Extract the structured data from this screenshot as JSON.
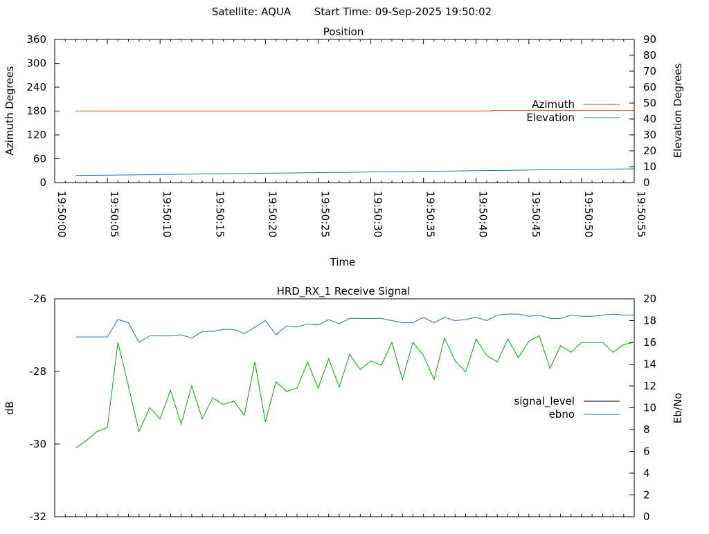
{
  "header": {
    "satellite": "Satellite: AQUA",
    "start_time": "Start Time: 09-Sep-2025 19:50:02"
  },
  "chart_data": [
    {
      "type": "line",
      "title": "Position",
      "xlabel": "Time",
      "ylabel": "Azimuth Degrees",
      "y2label": "Elevation Degrees",
      "ylim": [
        0,
        360
      ],
      "y2lim": [
        0,
        90
      ],
      "xlim": [
        "19:50:00",
        "19:50:55"
      ],
      "yticks": [
        "0",
        "60",
        "120",
        "180",
        "240",
        "300",
        "360"
      ],
      "y2ticks": [
        "0",
        "10",
        "20",
        "30",
        "40",
        "50",
        "60",
        "70",
        "80",
        "90"
      ],
      "xticks": [
        "19:50:00",
        "19:50:05",
        "19:50:10",
        "19:50:15",
        "19:50:20",
        "19:50:25",
        "19:50:30",
        "19:50:35",
        "19:50:40",
        "19:50:45",
        "19:50:50",
        "19:50:55"
      ],
      "legend_position": "right",
      "colors": {
        "Azimuth": "#c0392b",
        "Elevation": "#2e6da4"
      },
      "series": [
        {
          "name": "Azimuth",
          "axis": "left",
          "x": [
            2,
            41.5,
            41.5,
            55
          ],
          "values": [
            180,
            180,
            181.5,
            181.5
          ]
        },
        {
          "name": "Elevation",
          "axis": "right",
          "x": [
            2,
            5,
            8,
            10,
            13,
            15,
            18,
            20,
            23,
            25,
            28,
            30,
            33,
            35,
            38,
            40,
            43,
            45,
            48,
            50,
            53,
            55
          ],
          "values": [
            4.5,
            4.7,
            4.9,
            5.1,
            5.3,
            5.5,
            5.7,
            5.9,
            6.1,
            6.3,
            6.5,
            6.7,
            6.9,
            7.1,
            7.3,
            7.5,
            7.7,
            7.9,
            8.1,
            8.3,
            8.5,
            8.7
          ]
        }
      ]
    },
    {
      "type": "line",
      "title": "HRD_RX_1 Receive Signal",
      "ylabel": "dB",
      "y2label": "Eb/No",
      "ylim": [
        -32,
        -26
      ],
      "y2lim": [
        0,
        20
      ],
      "yticks": [
        "-32",
        "-30",
        "-28",
        "-26"
      ],
      "y2ticks": [
        "0",
        "2",
        "4",
        "6",
        "8",
        "10",
        "12",
        "14",
        "16",
        "18",
        "20"
      ],
      "legend_position": "right",
      "colors": {
        "signal_level": "#000000",
        "ebno": "#2e6da4",
        "unlabeled_trace": "#00aa00"
      },
      "series": [
        {
          "name": "signal_level",
          "axis": "left",
          "values": []
        },
        {
          "name": "ebno",
          "axis": "right",
          "x": [
            2,
            5,
            6,
            7,
            8,
            9,
            10,
            11,
            12,
            13,
            14,
            15,
            16,
            17,
            18,
            19,
            20,
            21,
            22,
            23,
            24,
            25,
            26,
            27,
            28,
            29,
            30,
            31,
            32,
            33,
            34,
            35,
            36,
            37,
            38,
            39,
            40,
            41,
            42,
            43,
            44,
            45,
            46,
            47,
            48,
            49,
            50,
            51,
            52,
            53,
            54,
            55
          ],
          "values": [
            16.5,
            16.5,
            18.1,
            17.8,
            16.0,
            16.6,
            16.6,
            16.6,
            16.7,
            16.4,
            17.0,
            17.0,
            17.2,
            17.2,
            16.8,
            17.4,
            18.0,
            16.7,
            17.5,
            17.4,
            17.7,
            17.6,
            18.1,
            17.7,
            18.2,
            18.2,
            18.2,
            18.2,
            18.0,
            17.8,
            17.8,
            18.3,
            17.8,
            18.3,
            18.0,
            18.1,
            18.3,
            18.0,
            18.5,
            18.6,
            18.6,
            18.4,
            18.5,
            18.2,
            18.2,
            18.5,
            18.4,
            18.4,
            18.5,
            18.6,
            18.5,
            18.5
          ]
        },
        {
          "name": "",
          "key": "unlabeled_trace",
          "axis": "right",
          "x": [
            2,
            3,
            4,
            5,
            6,
            7,
            8,
            9,
            10,
            11,
            12,
            13,
            14,
            15,
            16,
            17,
            18,
            19,
            20,
            21,
            22,
            23,
            24,
            25,
            26,
            27,
            28,
            29,
            30,
            31,
            32,
            33,
            34,
            35,
            36,
            37,
            38,
            39,
            40,
            41,
            42,
            43,
            44,
            45,
            46,
            47,
            48,
            49,
            50,
            51,
            52,
            53,
            54,
            55
          ],
          "values": [
            6.3,
            7.0,
            7.8,
            8.2,
            16.0,
            12.0,
            7.8,
            10.0,
            9.0,
            11.6,
            8.5,
            12.0,
            9.0,
            10.9,
            10.3,
            10.6,
            9.3,
            14.2,
            8.7,
            12.4,
            11.5,
            11.8,
            14.2,
            11.8,
            14.5,
            11.9,
            14.9,
            13.5,
            14.3,
            13.9,
            16.0,
            12.6,
            16.0,
            14.8,
            12.6,
            16.4,
            14.3,
            13.3,
            16.3,
            14.8,
            14.2,
            16.3,
            14.6,
            16.1,
            16.6,
            13.6,
            15.7,
            15.1,
            16.0,
            16.0,
            16.0,
            15.1,
            15.8,
            16.0
          ]
        }
      ]
    }
  ]
}
